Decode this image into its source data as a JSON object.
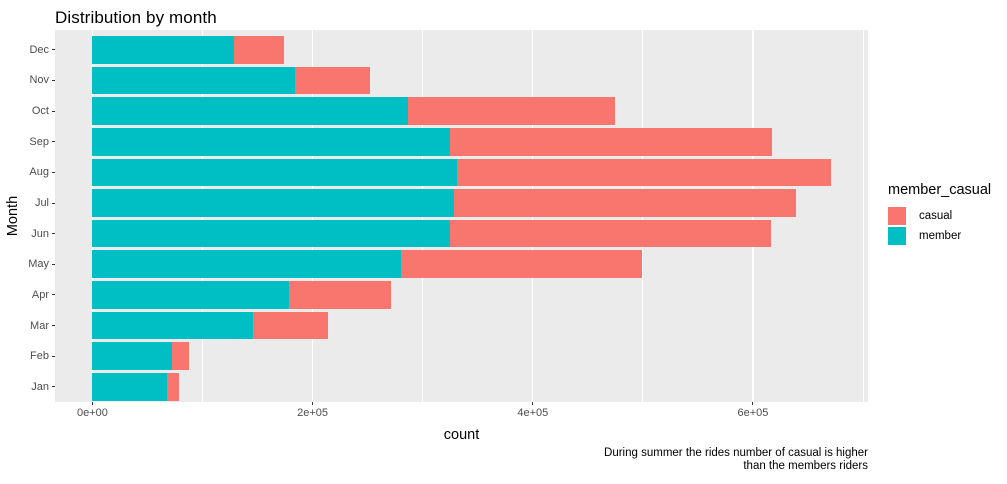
{
  "title": "Distribution by month",
  "axes": {
    "x_title": "count",
    "y_title": "Month",
    "x_major_ticks": [
      {
        "value": 0,
        "label": "0e+00"
      },
      {
        "value": 200000,
        "label": "2e+05"
      },
      {
        "value": 400000,
        "label": "4e+05"
      },
      {
        "value": 600000,
        "label": "6e+05"
      }
    ],
    "x_minor_ticks": [
      100000,
      300000,
      500000,
      700000
    ],
    "x_range": [
      -34000,
      704500
    ]
  },
  "legend": {
    "title": "member_casual",
    "items": [
      {
        "label": "casual",
        "color": "#F8766D"
      },
      {
        "label": "member",
        "color": "#00BFC4"
      }
    ]
  },
  "caption": {
    "line1": "During summer the  rides number of casual is higher",
    "line2": "than the members riders"
  },
  "colors": {
    "panel_bg": "#EBEBEB",
    "grid": "#FFFFFF",
    "axis_text": "#4D4D4D",
    "text": "#000000",
    "casual": "#F8766D",
    "member": "#00BFC4"
  },
  "chart_data": {
    "type": "bar",
    "orientation": "horizontal",
    "stacked": true,
    "title": "Distribution by month",
    "xlabel": "count",
    "ylabel": "Month",
    "legend_title": "member_casual",
    "legend_position": "right",
    "grid": true,
    "row_order": "top_to_bottom",
    "categories": [
      "Dec",
      "Nov",
      "Oct",
      "Sep",
      "Aug",
      "Jul",
      "Jun",
      "May",
      "Apr",
      "Mar",
      "Feb",
      "Jan"
    ],
    "series": [
      {
        "name": "member",
        "color": "#00BFC4",
        "values": [
          129000,
          184000,
          287000,
          325000,
          331000,
          328000,
          325000,
          280000,
          179000,
          146000,
          72000,
          68000
        ]
      },
      {
        "name": "casual",
        "color": "#F8766D",
        "values": [
          45000,
          68000,
          188000,
          292000,
          340000,
          311000,
          291000,
          219000,
          92000,
          68000,
          16000,
          11000
        ]
      }
    ],
    "totals": [
      174000,
      252000,
      475000,
      617000,
      671000,
      639000,
      616000,
      499000,
      271000,
      214000,
      88000,
      79000
    ],
    "xlim": [
      0,
      700000
    ]
  }
}
